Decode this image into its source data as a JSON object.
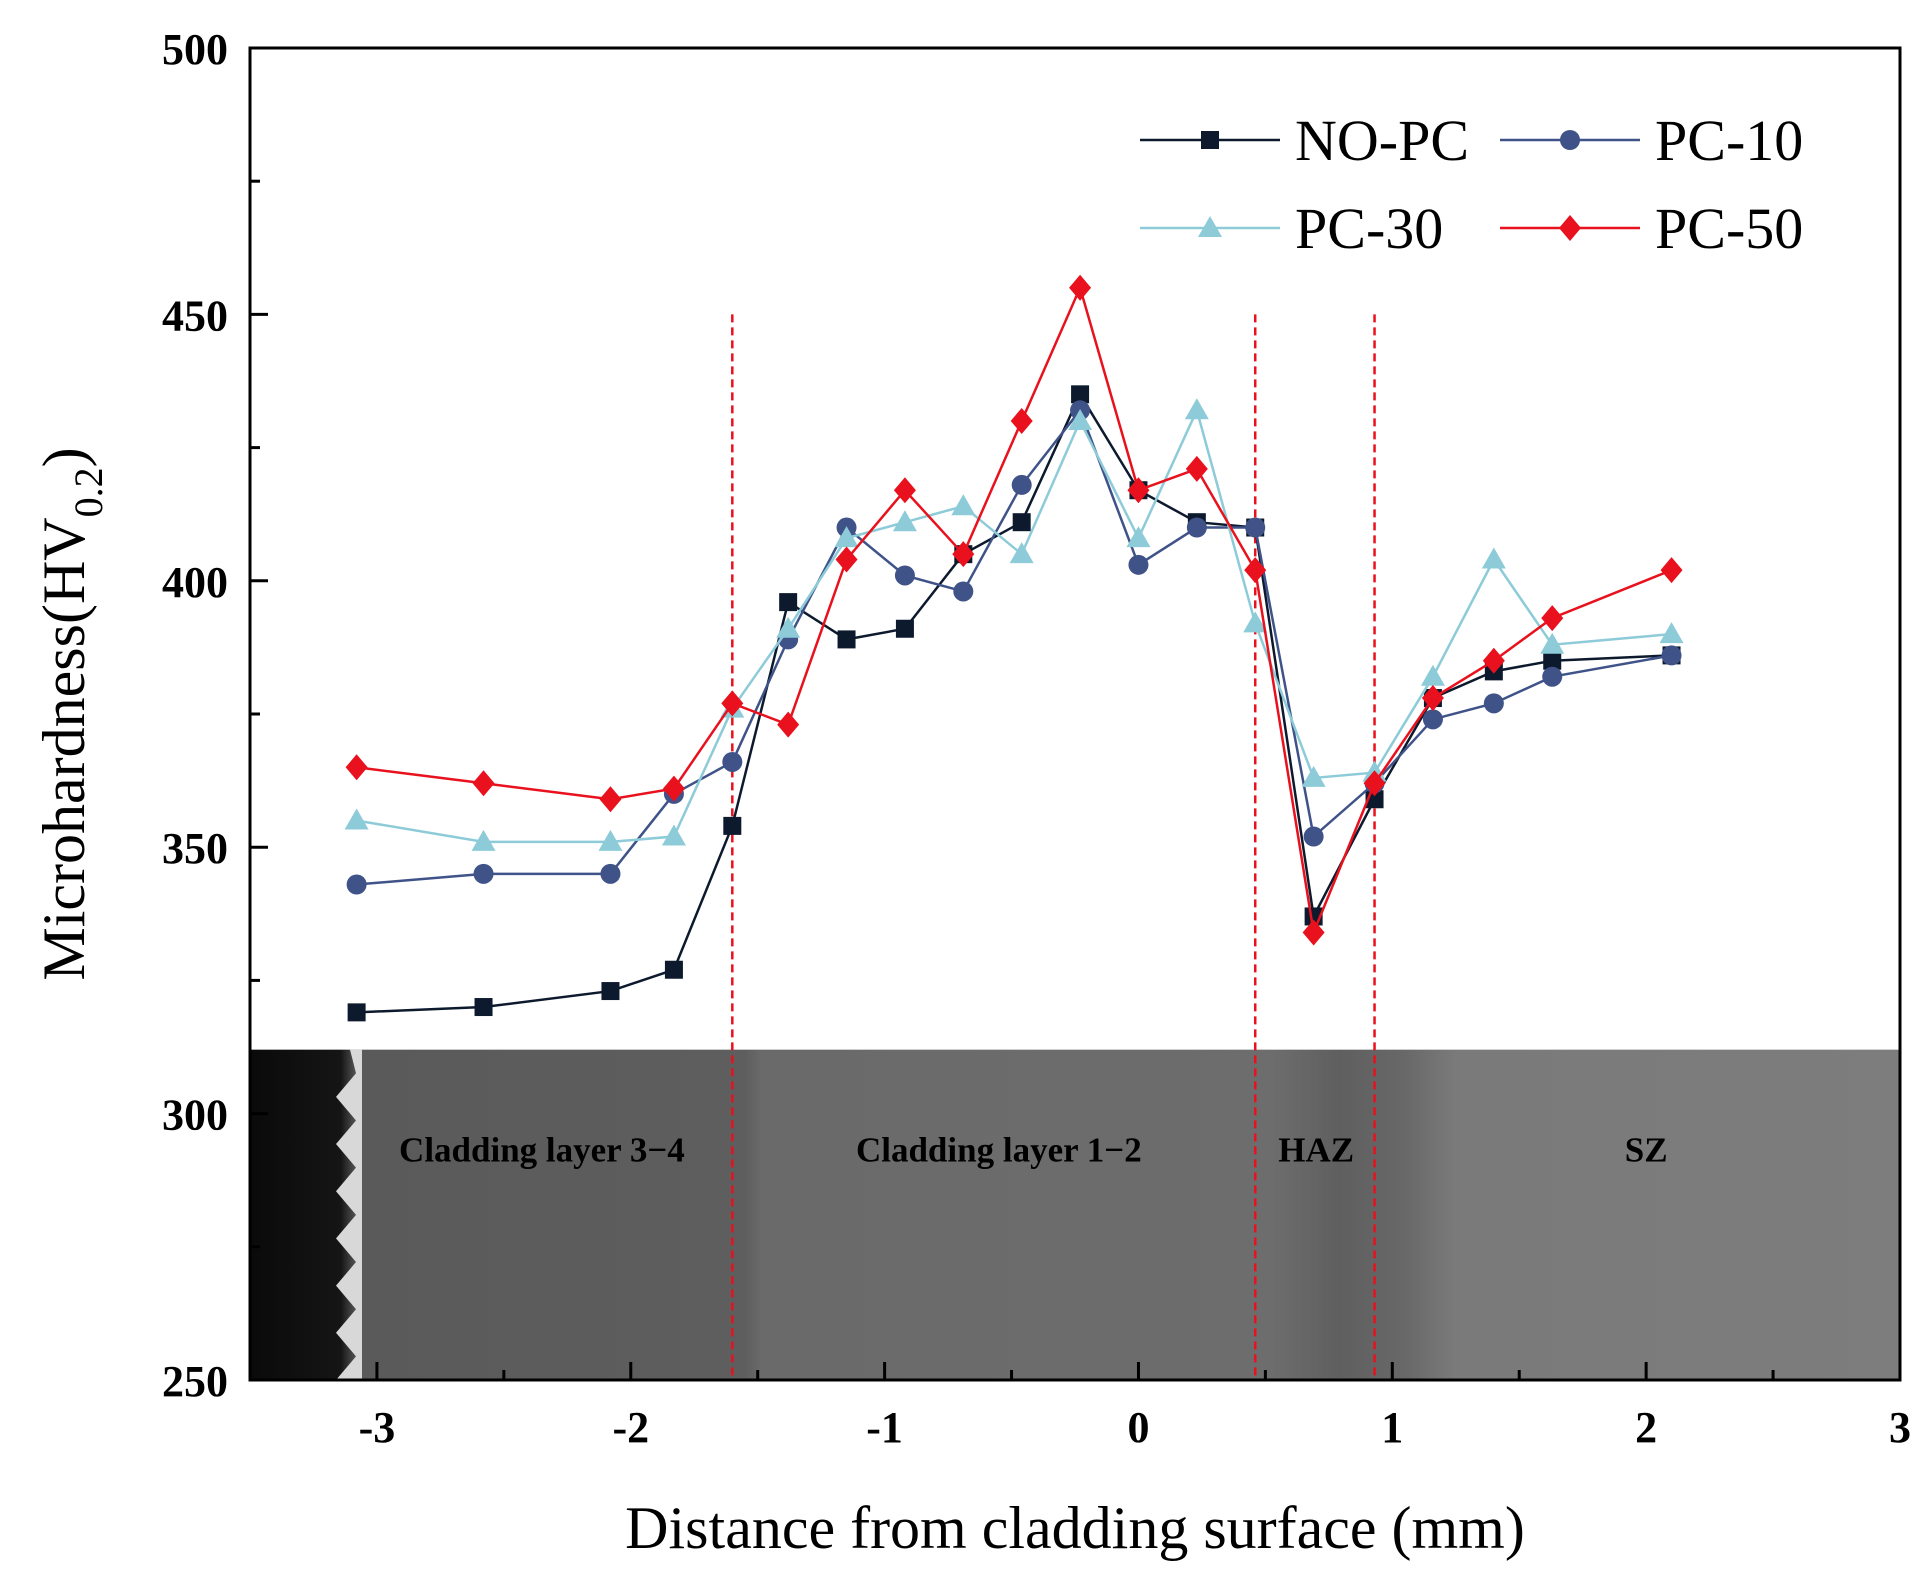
{
  "chart_data": {
    "type": "line",
    "xlabel": "Distance from cladding surface (mm)",
    "ylabel_main": "Microhardness(HV",
    "ylabel_sub": "0.2",
    "ylabel_close": ")",
    "xlim": [
      -3.5,
      3
    ],
    "ylim": [
      250,
      500
    ],
    "xticks": [
      -3,
      -2,
      -1,
      0,
      1,
      2,
      3
    ],
    "xtick_labels": [
      "-3",
      "-2",
      "-1",
      "0",
      "1",
      "2",
      "3"
    ],
    "yticks": [
      250,
      300,
      350,
      400,
      450,
      500
    ],
    "ytick_labels": [
      "250",
      "300",
      "350",
      "400",
      "450",
      "500"
    ],
    "boundaries": [
      -1.6,
      0.46,
      0.93
    ],
    "boundary_top": 450,
    "boundary_color": "#e8111d",
    "micrograph_band_top": 312,
    "regions": [
      {
        "label": "Cladding layer 3−4",
        "x": -2.35
      },
      {
        "label": "Cladding layer 1−2",
        "x": -0.55
      },
      {
        "label": "HAZ",
        "x": 0.7
      },
      {
        "label": "SZ",
        "x": 2.0
      }
    ],
    "legend_position": "top-right",
    "series": [
      {
        "name": "NO-PC",
        "color": "#0d1a2e",
        "marker": "square",
        "x": [
          -3.08,
          -2.58,
          -2.08,
          -1.83,
          -1.6,
          -1.38,
          -1.15,
          -0.92,
          -0.69,
          -0.46,
          -0.23,
          0,
          0.23,
          0.46,
          0.69,
          0.93,
          1.16,
          1.4,
          1.63,
          2.1
        ],
        "y": [
          319,
          320,
          323,
          327,
          354,
          396,
          389,
          391,
          405,
          411,
          435,
          417,
          411,
          410,
          337,
          359,
          378,
          383,
          385,
          386
        ]
      },
      {
        "name": "PC-10",
        "color": "#3f5389",
        "marker": "circle",
        "x": [
          -3.08,
          -2.58,
          -2.08,
          -1.83,
          -1.6,
          -1.38,
          -1.15,
          -0.92,
          -0.69,
          -0.46,
          -0.23,
          0,
          0.23,
          0.46,
          0.69,
          0.93,
          1.16,
          1.4,
          1.63,
          2.1
        ],
        "y": [
          343,
          345,
          345,
          360,
          366,
          389,
          410,
          401,
          398,
          418,
          432,
          403,
          410,
          410,
          352,
          362,
          374,
          377,
          382,
          386
        ]
      },
      {
        "name": "PC-30",
        "color": "#8dcbd9",
        "marker": "triangle",
        "x": [
          -3.08,
          -2.58,
          -2.08,
          -1.83,
          -1.6,
          -1.38,
          -1.15,
          -0.92,
          -0.69,
          -0.46,
          -0.23,
          0,
          0.23,
          0.46,
          0.69,
          0.93,
          1.16,
          1.4,
          1.63,
          2.1
        ],
        "y": [
          355,
          351,
          351,
          352,
          376,
          391,
          408,
          411,
          414,
          405,
          430,
          408,
          432,
          392,
          363,
          364,
          382,
          404,
          388,
          390
        ]
      },
      {
        "name": "PC-50",
        "color": "#e8111d",
        "marker": "diamond",
        "x": [
          -3.08,
          -2.58,
          -2.08,
          -1.83,
          -1.6,
          -1.38,
          -1.15,
          -0.92,
          -0.69,
          -0.46,
          -0.23,
          0,
          0.23,
          0.46,
          0.69,
          0.93,
          1.16,
          1.4,
          1.63,
          2.1
        ],
        "y": [
          365,
          362,
          359,
          361,
          377,
          373,
          404,
          417,
          405,
          430,
          455,
          417,
          421,
          402,
          334,
          362,
          378,
          385,
          393,
          402
        ]
      }
    ]
  }
}
